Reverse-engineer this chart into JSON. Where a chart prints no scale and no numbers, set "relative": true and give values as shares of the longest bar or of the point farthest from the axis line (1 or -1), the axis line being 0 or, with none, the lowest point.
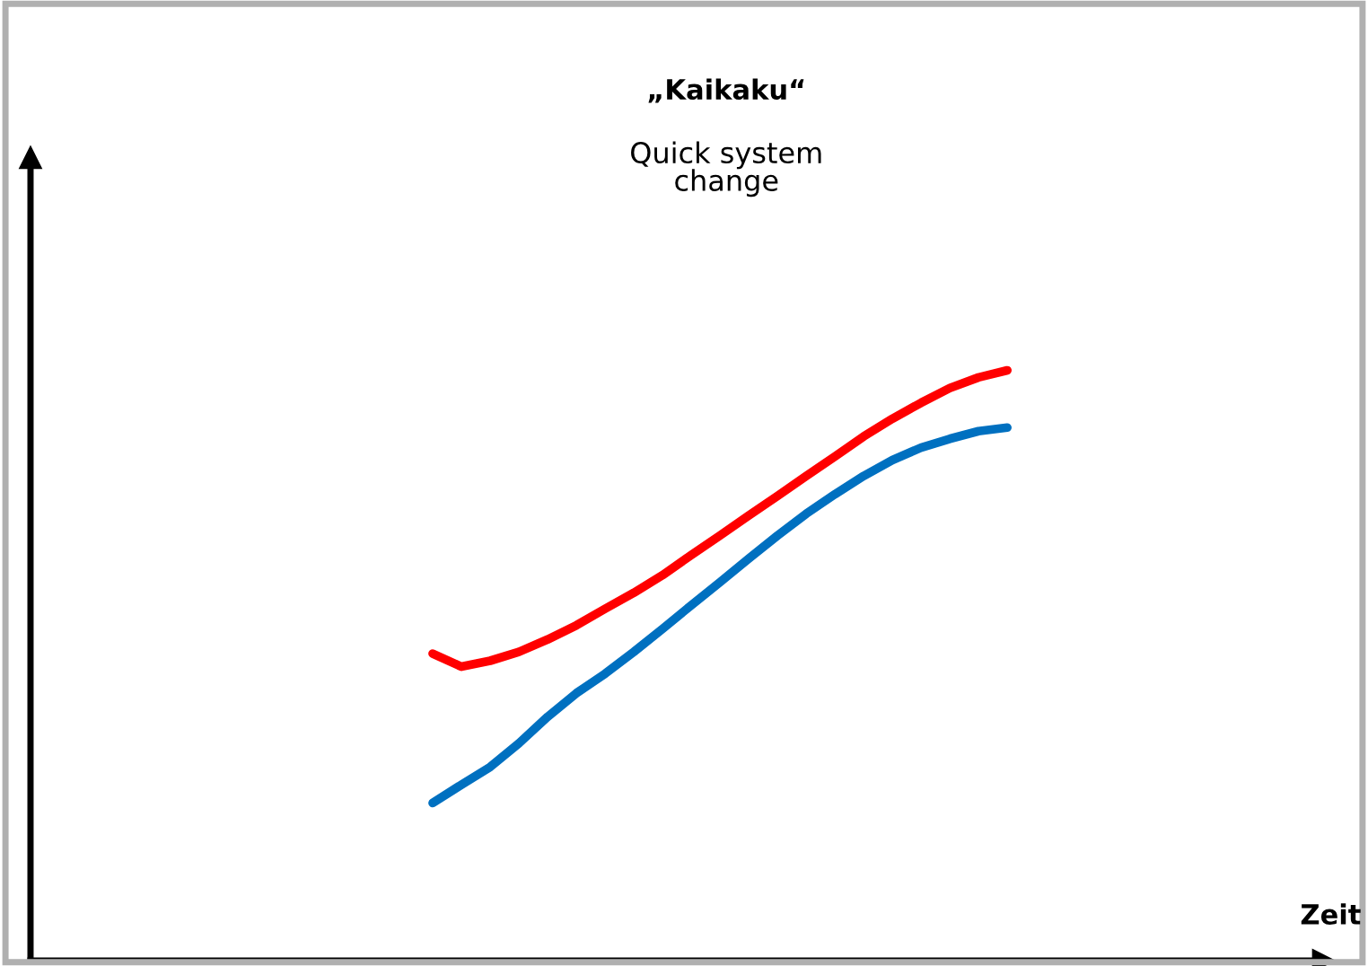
{
  "chart_data": {
    "type": "line",
    "title": "„Kaikaku“",
    "subtitle": "Quick system\nchange",
    "xlabel": "Zeit",
    "relative": true,
    "grid": false,
    "legend": false,
    "marker": "none",
    "line_style": "solid",
    "categories": [
      null,
      null,
      null,
      null,
      null,
      null,
      null,
      null,
      null,
      null,
      null,
      null,
      null,
      null,
      null,
      null,
      null,
      null,
      null,
      null,
      null,
      null,
      null,
      null,
      null,
      null,
      null,
      null,
      null,
      null,
      null,
      null,
      null,
      null,
      null,
      null,
      null,
      null,
      null,
      null,
      null,
      null,
      null,
      null,
      null,
      null
    ],
    "series": [
      {
        "color": "#ff0000",
        "values": [
          null,
          null,
          null,
          null,
          null,
          null,
          null,
          null,
          null,
          null,
          null,
          null,
          null,
          null,
          0.52,
          0.498,
          0.508,
          0.523,
          0.544,
          0.568,
          0.596,
          0.623,
          0.653,
          0.687,
          0.72,
          0.754,
          0.787,
          0.821,
          0.854,
          0.888,
          0.918,
          0.945,
          0.97,
          0.988,
          1,
          null,
          null,
          null,
          null,
          null,
          null,
          null,
          null,
          null,
          null,
          null
        ]
      },
      {
        "color": "#0070c0",
        "values": [
          null,
          null,
          null,
          null,
          null,
          null,
          null,
          null,
          null,
          null,
          null,
          null,
          null,
          null,
          0.267,
          0.298,
          0.328,
          0.368,
          0.413,
          0.453,
          0.486,
          0.523,
          0.562,
          0.602,
          0.641,
          0.681,
          0.72,
          0.757,
          0.79,
          0.821,
          0.848,
          0.869,
          0.884,
          0.897,
          0.903,
          null,
          null,
          null,
          null,
          null,
          null,
          null,
          null,
          null,
          null,
          null
        ]
      }
    ]
  }
}
